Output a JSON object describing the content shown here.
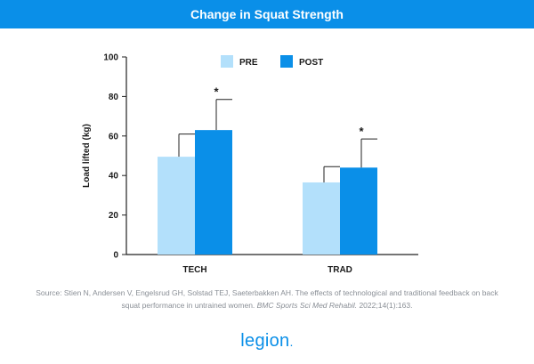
{
  "header": {
    "title": "Change in Squat Strength"
  },
  "source": {
    "prefix": "Source: Stien N, Andersen V, Engelsrud GH, Solstad TEJ, Saeterbakken AH. The effects of technological and traditional feedback on back squat performance in untrained women. ",
    "journal": "BMC Sports Sci Med Rehabil.",
    "suffix": " 2022;14(1):163."
  },
  "brand": {
    "name": "legion",
    "dot": "."
  },
  "colors": {
    "header": "#0a8fe8",
    "pre": "#b3e0fb",
    "post": "#0a8fe8"
  },
  "chart_data": {
    "type": "bar",
    "title": "",
    "xlabel": "",
    "ylabel": "Load lifted (kg)",
    "ylim": [
      0,
      100
    ],
    "yticks": [
      0,
      20,
      40,
      60,
      80,
      100
    ],
    "categories": [
      "TECH",
      "TRAD"
    ],
    "series": [
      {
        "name": "PRE",
        "values": [
          49.5,
          36.5
        ],
        "error_upper": [
          61,
          44.5
        ],
        "color": "#b3e0fb"
      },
      {
        "name": "POST",
        "values": [
          63,
          44
        ],
        "error_upper": [
          78.5,
          58.5
        ],
        "color": "#0a8fe8"
      }
    ],
    "annotations": [
      {
        "category": "TECH",
        "series": "POST",
        "text": "*"
      },
      {
        "category": "TRAD",
        "series": "POST",
        "text": "*"
      }
    ],
    "legend_position": "top-center",
    "grid": false
  }
}
